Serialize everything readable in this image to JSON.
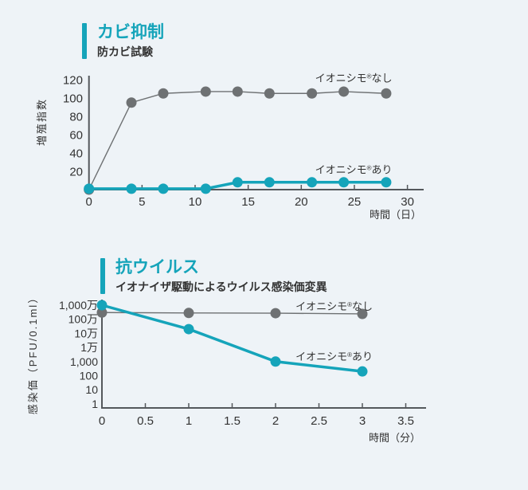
{
  "colors": {
    "teal": "#15a4ba",
    "gray": "#6e7173",
    "text": "#333333",
    "axis": "#54585c",
    "background": "#eef3f7"
  },
  "chart_data": [
    {
      "name": "mold-suppression",
      "type": "line",
      "title": "カビ抑制",
      "subtitle": "防カビ試験",
      "xlabel": "時間（日）",
      "ylabel": "増殖指数",
      "xlim": [
        0,
        31
      ],
      "ylim": [
        0,
        125
      ],
      "grid": false,
      "legend_position": "inline-right",
      "x_ticks": [
        0,
        5,
        10,
        15,
        20,
        25,
        30
      ],
      "y_ticks": [
        20,
        40,
        60,
        80,
        100,
        120
      ],
      "series": [
        {
          "name": "イオニシモ®なし",
          "color": "gray",
          "x": [
            0,
            4,
            7,
            11,
            14,
            17,
            21,
            24,
            28
          ],
          "values": [
            0,
            95,
            105,
            107,
            107,
            105,
            105,
            107,
            105
          ]
        },
        {
          "name": "イオニシモ®あり",
          "color": "teal",
          "x": [
            0,
            4,
            7,
            11,
            14,
            17,
            21,
            24,
            28
          ],
          "values": [
            1,
            1,
            1,
            1,
            8,
            8,
            8,
            8,
            8
          ]
        }
      ]
    },
    {
      "name": "anti-virus",
      "type": "line",
      "yscale": "log",
      "title": "抗ウイルス",
      "subtitle": "イオナイザ駆動によるウイルス感染価変異",
      "xlabel": "時間（分）",
      "ylabel": "感染価（PFU/0.1ml）",
      "xlim": [
        0,
        3.7
      ],
      "ylim": [
        1,
        10000000
      ],
      "grid": false,
      "legend_position": "inline-right",
      "x_ticks": [
        0,
        0.5,
        1,
        1.5,
        2,
        2.5,
        3,
        3.5
      ],
      "y_ticks": [
        "1",
        "10",
        "100",
        "1,000",
        "1万",
        "10万",
        "100万",
        "1,000万"
      ],
      "series": [
        {
          "name": "イオニシモ®なし",
          "color": "gray",
          "x": [
            0,
            1,
            2,
            3
          ],
          "values": [
            3000000,
            2800000,
            2700000,
            2400000
          ]
        },
        {
          "name": "イオニシモ®あり",
          "color": "teal",
          "x": [
            0,
            1,
            2,
            3
          ],
          "values": [
            10000000,
            200000,
            1000,
            200
          ]
        }
      ]
    }
  ]
}
